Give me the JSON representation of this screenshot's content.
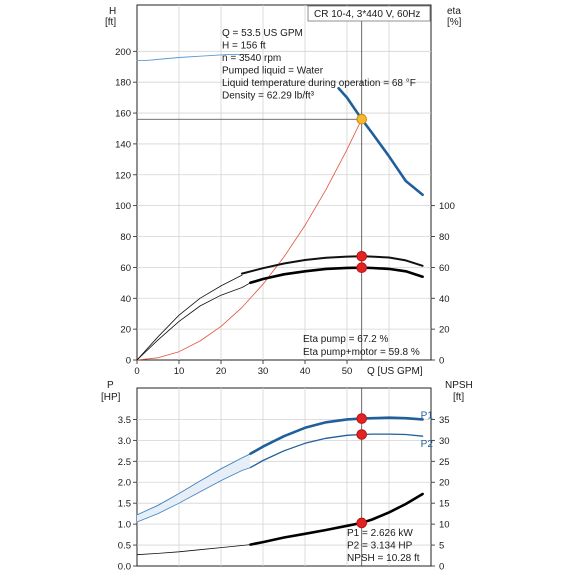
{
  "chart_data": [
    {
      "type": "line",
      "title": "CR 10-4, 3*440 V, 60Hz",
      "xlabel": "Q [US GPM]",
      "x_ticks": [
        0,
        10,
        20,
        30,
        40,
        50
      ],
      "xlim": [
        0,
        70
      ],
      "y_left_label": "H",
      "y_left_unit": "[ft]",
      "y_left_ticks": [
        0,
        20,
        40,
        60,
        80,
        100,
        120,
        140,
        160,
        180,
        200
      ],
      "y_left_lim": [
        0,
        230
      ],
      "y_right_label": "eta",
      "y_right_unit": "[%]",
      "y_right_ticks": [
        0,
        20,
        40,
        60,
        80,
        100
      ],
      "y_right_lim": [
        0,
        230
      ],
      "grid": true,
      "info_text": [
        "Q = 53.5 US GPM",
        "H = 156 ft",
        "n = 3540 rpm",
        "Pumped liquid = Water",
        "Liquid temperature during operation = 68 °F",
        "Density = 62.29 lb/ft³"
      ],
      "annotations": [
        "Eta pump = 67.2 %",
        "Eta pump+motor = 59.8 %"
      ],
      "series": [
        {
          "key": "head",
          "axis": "left",
          "color": "#1f5f9a",
          "width": 2.6,
          "x": [
            48,
            50,
            53.5,
            56,
            60,
            64,
            68
          ],
          "y": [
            176,
            170,
            156,
            147,
            132,
            116,
            107
          ]
        },
        {
          "key": "head_thin",
          "axis": "left",
          "color": "#5b9bd5",
          "width": 0.9,
          "x": [
            0,
            2,
            6,
            10,
            16,
            22,
            26
          ],
          "y": [
            194,
            194,
            195,
            196,
            197,
            198,
            198
          ]
        },
        {
          "key": "system_curve",
          "axis": "left",
          "color": "#e0533a",
          "width": 0.8,
          "x": [
            0,
            5,
            10,
            15,
            20,
            25,
            30,
            35,
            40,
            45,
            50,
            53.5
          ],
          "y": [
            0,
            1.4,
            5.4,
            12.3,
            21.8,
            34.1,
            49.1,
            66.8,
            87.2,
            110.4,
            136.3,
            156
          ]
        },
        {
          "key": "eta_pump",
          "axis": "right",
          "color": "#111111",
          "width": 2.0,
          "x": [
            25,
            30,
            35,
            40,
            45,
            50,
            53.5,
            56,
            60,
            64,
            68
          ],
          "y": [
            56,
            59.5,
            62.5,
            64.8,
            66.3,
            67,
            67.2,
            67,
            66.4,
            64.5,
            61
          ]
        },
        {
          "key": "eta_pump_thin",
          "axis": "right",
          "color": "#111111",
          "width": 0.8,
          "x": [
            0,
            5,
            10,
            15,
            20,
            25
          ],
          "y": [
            0,
            15,
            29,
            40,
            48,
            55
          ]
        },
        {
          "key": "eta_total",
          "axis": "right",
          "color": "#000000",
          "width": 2.6,
          "x": [
            27,
            30,
            35,
            40,
            45,
            50,
            53.5,
            56,
            60,
            64,
            68
          ],
          "y": [
            50,
            52.5,
            55.5,
            57.5,
            59,
            59.7,
            59.8,
            59.6,
            59,
            57.5,
            54
          ]
        },
        {
          "key": "eta_total_thin",
          "axis": "right",
          "color": "#111111",
          "width": 0.8,
          "x": [
            0,
            5,
            10,
            15,
            20,
            25,
            27
          ],
          "y": [
            0,
            13,
            25,
            35,
            42,
            47,
            50
          ]
        }
      ],
      "points": [
        {
          "x": 53.5,
          "y": 156,
          "axis": "left",
          "fill": "#f5b72d",
          "stroke": "#c98a12"
        },
        {
          "x": 53.5,
          "y": 67.2,
          "axis": "right",
          "fill": "#e32222",
          "stroke": "#b51515"
        },
        {
          "x": 53.5,
          "y": 59.8,
          "axis": "right",
          "fill": "#e32222",
          "stroke": "#b51515"
        }
      ],
      "guides": {
        "x": 53.5,
        "y": 156
      }
    },
    {
      "type": "line",
      "title": "",
      "xlim": [
        0,
        70
      ],
      "y_left_label": "P",
      "y_left_unit": "[HP]",
      "y_left_ticks": [
        0.0,
        0.5,
        1.0,
        1.5,
        2.0,
        2.5,
        3.0,
        3.5
      ],
      "y_left_tick_labels": [
        "0.0",
        "0.5",
        "1.0",
        "1.5",
        "2.0",
        "2.5",
        "3.0",
        "3.5"
      ],
      "y_left_lim": [
        0,
        4.25
      ],
      "y_right_label": "NPSH",
      "y_right_unit": "[ft]",
      "y_right_ticks": [
        0,
        5,
        10,
        15,
        20,
        25,
        30,
        35
      ],
      "y_right_lim": [
        0,
        42.5
      ],
      "grid": true,
      "series_labels": [
        {
          "text": "P1",
          "x": 69,
          "y": 3.6,
          "color": "#1f5f9a"
        },
        {
          "text": "P2",
          "x": 69,
          "y": 2.93,
          "color": "#1f5f9a"
        }
      ],
      "annotations": [
        "P1 = 2.626 kW",
        "P2 = 3.134 HP",
        "NPSH = 10.28 ft"
      ],
      "series": [
        {
          "key": "p1",
          "axis": "left",
          "color": "#1f5f9a",
          "width": 2.6,
          "x": [
            27,
            30,
            35,
            40,
            45,
            50,
            53.5,
            56,
            60,
            64,
            68
          ],
          "y": [
            2.68,
            2.85,
            3.1,
            3.3,
            3.43,
            3.5,
            3.52,
            3.53,
            3.54,
            3.53,
            3.5
          ]
        },
        {
          "key": "p1_thin",
          "axis": "left",
          "color": "#3f7fbf",
          "width": 0.9,
          "x": [
            0,
            5,
            10,
            15,
            20,
            25,
            27
          ],
          "y": [
            1.22,
            1.45,
            1.73,
            2.03,
            2.32,
            2.58,
            2.68
          ]
        },
        {
          "key": "p2",
          "axis": "left",
          "color": "#1f5f9a",
          "width": 1.3,
          "x": [
            27,
            30,
            35,
            40,
            45,
            50,
            53.5,
            56,
            60,
            64,
            68
          ],
          "y": [
            2.35,
            2.52,
            2.75,
            2.93,
            3.05,
            3.12,
            3.14,
            3.15,
            3.15,
            3.14,
            3.1
          ]
        },
        {
          "key": "p2_thin",
          "axis": "left",
          "color": "#3f7fbf",
          "width": 0.8,
          "x": [
            0,
            5,
            10,
            15,
            20,
            25,
            27
          ],
          "y": [
            1.05,
            1.25,
            1.5,
            1.77,
            2.04,
            2.28,
            2.35
          ]
        },
        {
          "key": "npsh",
          "axis": "right",
          "color": "#000000",
          "width": 2.6,
          "x": [
            27,
            30,
            35,
            40,
            45,
            50,
            53.5,
            56,
            60,
            64,
            68
          ],
          "y": [
            5.1,
            5.7,
            6.8,
            7.7,
            8.6,
            9.6,
            10.28,
            11.1,
            12.8,
            14.8,
            17.2
          ]
        },
        {
          "key": "npsh_thin",
          "axis": "right",
          "color": "#111111",
          "width": 0.8,
          "x": [
            0,
            5,
            10,
            15,
            20,
            25,
            27
          ],
          "y": [
            2.7,
            3.0,
            3.4,
            3.9,
            4.4,
            4.9,
            5.1
          ]
        }
      ],
      "points": [
        {
          "x": 53.5,
          "y": 3.52,
          "axis": "left",
          "fill": "#e32222",
          "stroke": "#b51515"
        },
        {
          "x": 53.5,
          "y": 3.14,
          "axis": "left",
          "fill": "#e32222",
          "stroke": "#b51515"
        },
        {
          "x": 53.5,
          "y": 10.28,
          "axis": "right",
          "fill": "#e32222",
          "stroke": "#b51515"
        }
      ],
      "guides": {
        "x": 53.5
      }
    }
  ]
}
